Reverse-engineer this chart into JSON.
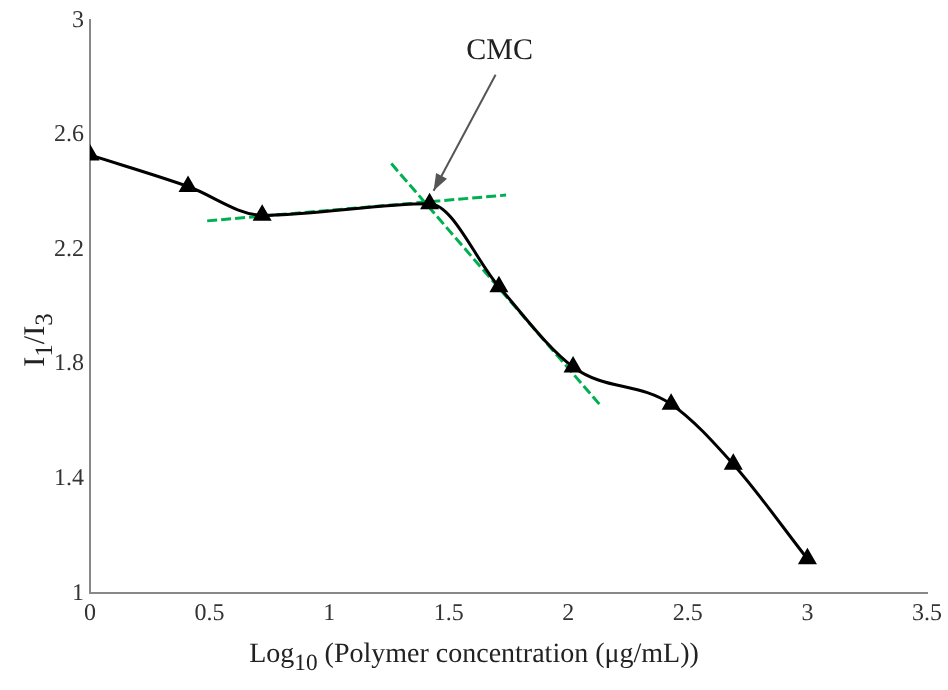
{
  "chart_data": {
    "type": "line",
    "xlabel": "Log$_{10}$  (Polymer concentration (μg/mL))",
    "ylabel": "I$_{1}$/I$_{3}$",
    "annotations": [
      {
        "text": "CMC",
        "x": 1.42,
        "y": 2.37
      }
    ],
    "series": [
      {
        "color": "#000000",
        "marker": "triangle",
        "line_style": "solid",
        "x": [
          0,
          0.41,
          0.72,
          1.42,
          1.71,
          2.02,
          2.43,
          2.69,
          3.0
        ],
        "values": [
          2.53,
          2.42,
          2.32,
          2.36,
          2.07,
          1.79,
          1.66,
          1.45,
          1.12
        ]
      },
      {
        "color": "#00b050",
        "marker": "none",
        "line_style": "dashed",
        "x": [
          0.49,
          1.74
        ],
        "values": [
          2.3,
          2.39
        ]
      },
      {
        "color": "#00b050",
        "marker": "none",
        "line_style": "dashed",
        "x": [
          1.26,
          2.13
        ],
        "values": [
          2.5,
          1.66
        ]
      }
    ],
    "xlim": [
      0,
      3.5
    ],
    "xticks": [
      0,
      0.5,
      1,
      1.5,
      2,
      2.5,
      3,
      3.5
    ],
    "ylim": [
      1,
      3
    ],
    "yticks": [
      1,
      1.4,
      1.8,
      2.2,
      2.6,
      3
    ],
    "grid": false
  }
}
